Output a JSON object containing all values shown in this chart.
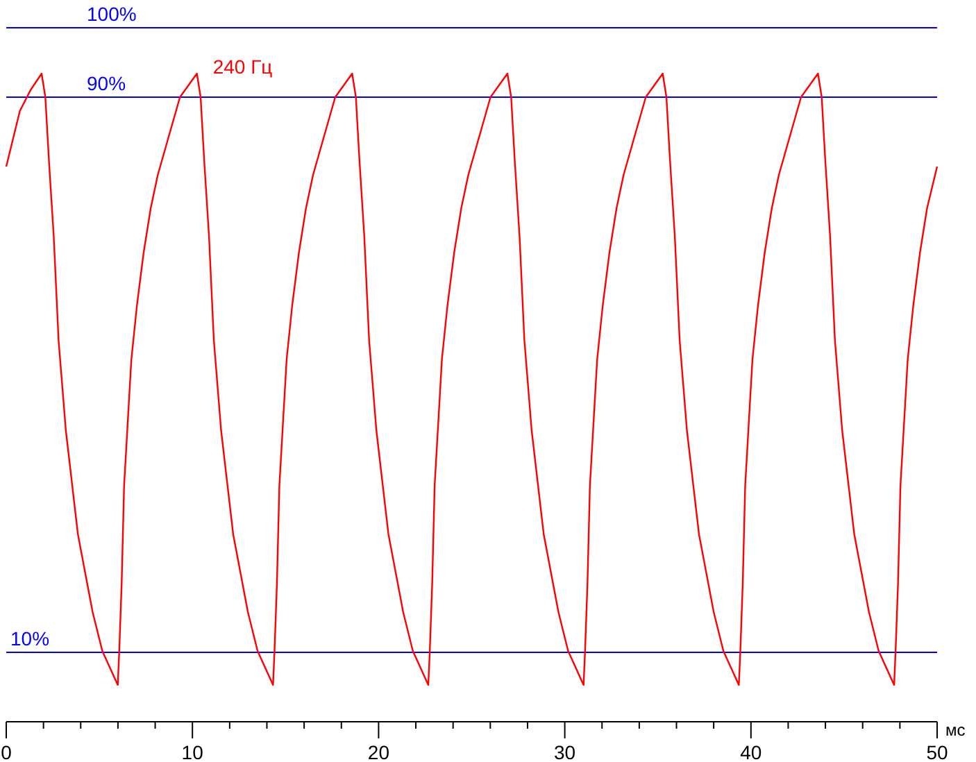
{
  "chart_data": {
    "type": "line",
    "xlabel": "мс",
    "xlim": [
      0,
      50
    ],
    "ylim": [
      0,
      104
    ],
    "tick_labels": "x",
    "grid": false,
    "legend": false,
    "marker": "none",
    "line_style": "solid",
    "xticks": [
      0,
      {
        "value": 2,
        "label": null
      },
      {
        "value": 4,
        "label": null
      },
      {
        "value": 6,
        "label": null
      },
      {
        "value": 8,
        "label": null
      },
      10,
      {
        "value": 12,
        "label": null
      },
      {
        "value": 14,
        "label": null
      },
      {
        "value": 16,
        "label": null
      },
      {
        "value": 18,
        "label": null
      },
      20,
      {
        "value": 22,
        "label": null
      },
      {
        "value": 24,
        "label": null
      },
      {
        "value": 26,
        "label": null
      },
      {
        "value": 28,
        "label": null
      },
      30,
      {
        "value": 32,
        "label": null
      },
      {
        "value": 34,
        "label": null
      },
      {
        "value": 36,
        "label": null
      },
      {
        "value": 38,
        "label": null
      },
      40,
      {
        "value": 42,
        "label": null
      },
      {
        "value": 44,
        "label": null
      },
      {
        "value": 46,
        "label": null
      },
      {
        "value": 48,
        "label": null
      },
      50
    ],
    "ref_lines": [
      {
        "axis": "y",
        "value": 100,
        "label": "100%",
        "color": "#0000ff"
      },
      {
        "axis": "y",
        "value": 90,
        "label": "90%",
        "color": "#0000ff"
      },
      {
        "axis": "y",
        "value": 10,
        "label": "10%",
        "color": "#0000ff"
      }
    ],
    "series": [
      {
        "name": "240 Гц",
        "color": "#ff0000",
        "x": [
          0,
          0.73,
          1.3,
          1.9,
          2.1,
          2.29,
          2.55,
          2.81,
          3.2,
          3.85,
          4.64,
          5.16,
          5.99,
          6.07,
          6.2,
          6.33,
          6.51,
          6.72,
          7.02,
          7.38,
          7.76,
          8.14,
          8.66,
          9.33,
          10.24,
          10.44,
          10.63,
          10.89,
          11.15,
          11.54,
          12.19,
          12.98,
          13.5,
          14.33,
          14.41,
          14.54,
          14.67,
          14.85,
          15.06,
          15.36,
          15.72,
          16.1,
          16.48,
          17.0,
          17.67,
          18.58,
          18.78,
          18.97,
          19.23,
          19.49,
          19.88,
          20.53,
          21.32,
          21.84,
          22.67,
          22.75,
          22.88,
          23.01,
          23.19,
          23.4,
          23.7,
          24.06,
          24.44,
          24.82,
          25.34,
          26.01,
          26.92,
          27.12,
          27.31,
          27.57,
          27.83,
          28.22,
          28.87,
          29.66,
          30.18,
          31.01,
          31.09,
          31.22,
          31.35,
          31.53,
          31.74,
          32.04,
          32.4,
          32.78,
          33.16,
          33.68,
          34.35,
          35.26,
          35.46,
          35.65,
          35.91,
          36.17,
          36.56,
          37.21,
          38.0,
          38.52,
          39.35,
          39.43,
          39.56,
          39.69,
          39.87,
          40.08,
          40.38,
          40.74,
          41.12,
          41.5,
          42.02,
          42.69,
          43.6,
          43.8,
          43.99,
          44.25,
          44.51,
          44.9,
          45.55,
          46.34,
          46.86,
          47.69,
          47.77,
          47.9,
          48.03,
          48.21,
          48.42,
          48.72,
          49.08,
          49.46,
          50
        ],
        "values": [
          80,
          88,
          91,
          93.4,
          90,
          81,
          70,
          55,
          42,
          27,
          15.8,
          10.2,
          5.3,
          10.2,
          20,
          34,
          42.4,
          52.2,
          60,
          67.6,
          74,
          78.8,
          83.7,
          90,
          93.4,
          90,
          81,
          70,
          55,
          42,
          27,
          15.8,
          10.2,
          5.3,
          10.2,
          20,
          34,
          42.4,
          52.2,
          60,
          67.6,
          74,
          78.8,
          83.7,
          90,
          93.4,
          90,
          81,
          70,
          55,
          42,
          27,
          15.8,
          10.2,
          5.3,
          10.2,
          20,
          34,
          42.4,
          52.2,
          60,
          67.6,
          74,
          78.8,
          83.7,
          90,
          93.4,
          90,
          81,
          70,
          55,
          42,
          27,
          15.8,
          10.2,
          5.3,
          10.2,
          20,
          34,
          42.4,
          52.2,
          60,
          67.6,
          74,
          78.8,
          83.7,
          90,
          93.4,
          90,
          81,
          70,
          55,
          42,
          27,
          15.8,
          10.2,
          5.3,
          10.2,
          20,
          34,
          42.4,
          52.2,
          60,
          67.6,
          74,
          78.8,
          83.7,
          90,
          93.4,
          90,
          81,
          70,
          55,
          42,
          27,
          15.8,
          10.2,
          5.3,
          10.2,
          20,
          34,
          42.4,
          52.2,
          60,
          67.6,
          74,
          80
        ]
      }
    ]
  }
}
